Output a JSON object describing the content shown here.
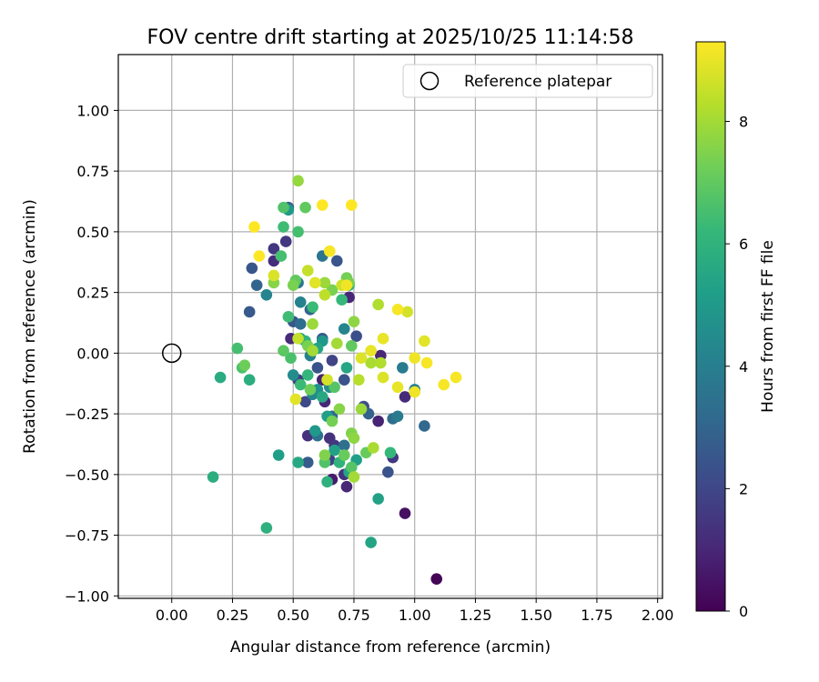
{
  "chart_data": {
    "type": "scatter",
    "title": "FOV centre drift starting at 2025/10/25 11:14:58",
    "xlabel": "Angular distance from reference (arcmin)",
    "ylabel": "Rotation from reference (arcmin)",
    "xlim": [
      -0.22,
      2.02
    ],
    "ylim": [
      -1.01,
      1.23
    ],
    "xticks": [
      0.0,
      0.25,
      0.5,
      0.75,
      1.0,
      1.25,
      1.5,
      1.75,
      2.0
    ],
    "xtick_labels": [
      "0.00",
      "0.25",
      "0.50",
      "0.75",
      "1.00",
      "1.25",
      "1.50",
      "1.75",
      "2.00"
    ],
    "yticks": [
      -1.0,
      -0.75,
      -0.5,
      -0.25,
      0.0,
      0.25,
      0.5,
      0.75,
      1.0
    ],
    "ytick_labels": [
      "−1.00",
      "−0.75",
      "−0.50",
      "−0.25",
      "0.00",
      "0.25",
      "0.50",
      "0.75",
      "1.00"
    ],
    "grid": true,
    "legend": {
      "placement": "upper-right",
      "entries": [
        {
          "label": "Reference platepar",
          "marker": "open-circle"
        }
      ]
    },
    "reference_point": {
      "x": 0.0,
      "y": 0.0
    },
    "colorbar": {
      "label": "Hours from first FF file",
      "colormap": "viridis",
      "range": [
        0,
        9.3
      ],
      "ticks": [
        0,
        2,
        4,
        6,
        8
      ],
      "tick_labels": [
        "0",
        "2",
        "4",
        "6",
        "8"
      ]
    },
    "colormap_stops": [
      "#440154",
      "#482878",
      "#3e4989",
      "#31688e",
      "#26828e",
      "#1f9e89",
      "#35b779",
      "#6ece58",
      "#b5de2b",
      "#fde725"
    ],
    "points": [
      {
        "x": 1.09,
        "y": -0.93,
        "h": 0.1
      },
      {
        "x": 0.96,
        "y": -0.66,
        "h": 0.4
      },
      {
        "x": 0.72,
        "y": -0.55,
        "h": 1.0
      },
      {
        "x": 0.66,
        "y": -0.52,
        "h": 0.7
      },
      {
        "x": 0.63,
        "y": -0.2,
        "h": 1.0
      },
      {
        "x": 0.62,
        "y": -0.11,
        "h": 0.9
      },
      {
        "x": 0.85,
        "y": -0.28,
        "h": 0.9
      },
      {
        "x": 0.96,
        "y": -0.18,
        "h": 1.1
      },
      {
        "x": 0.49,
        "y": 0.06,
        "h": 1.1
      },
      {
        "x": 0.73,
        "y": 0.23,
        "h": 1.0
      },
      {
        "x": 0.86,
        "y": -0.01,
        "h": 1.0
      },
      {
        "x": 0.42,
        "y": 0.43,
        "h": 1.5
      },
      {
        "x": 0.47,
        "y": 0.46,
        "h": 1.5
      },
      {
        "x": 0.42,
        "y": 0.38,
        "h": 1.2
      },
      {
        "x": 0.71,
        "y": -0.5,
        "h": 1.4
      },
      {
        "x": 0.91,
        "y": -0.43,
        "h": 1.5
      },
      {
        "x": 0.65,
        "y": -0.35,
        "h": 1.3
      },
      {
        "x": 0.56,
        "y": -0.34,
        "h": 1.3
      },
      {
        "x": 0.52,
        "y": -0.11,
        "h": 1.6
      },
      {
        "x": 0.67,
        "y": -0.38,
        "h": 1.5
      },
      {
        "x": 0.65,
        "y": -0.44,
        "h": 1.8
      },
      {
        "x": 0.66,
        "y": -0.03,
        "h": 1.9
      },
      {
        "x": 0.55,
        "y": -0.2,
        "h": 2.1
      },
      {
        "x": 0.79,
        "y": -0.22,
        "h": 2.2
      },
      {
        "x": 0.76,
        "y": 0.07,
        "h": 2.3
      },
      {
        "x": 0.71,
        "y": -0.11,
        "h": 2.4
      },
      {
        "x": 0.5,
        "y": 0.13,
        "h": 2.5
      },
      {
        "x": 0.6,
        "y": -0.06,
        "h": 2.4
      },
      {
        "x": 0.33,
        "y": 0.35,
        "h": 2.5
      },
      {
        "x": 0.32,
        "y": 0.17,
        "h": 2.6
      },
      {
        "x": 0.48,
        "y": 0.6,
        "h": 2.8
      },
      {
        "x": 0.68,
        "y": 0.38,
        "h": 2.5
      },
      {
        "x": 0.89,
        "y": -0.49,
        "h": 2.4
      },
      {
        "x": 0.56,
        "y": -0.45,
        "h": 2.7
      },
      {
        "x": 0.81,
        "y": -0.25,
        "h": 2.9
      },
      {
        "x": 0.62,
        "y": 0.06,
        "h": 2.6
      },
      {
        "x": 0.35,
        "y": 0.28,
        "h": 3.0
      },
      {
        "x": 1.04,
        "y": -0.3,
        "h": 3.1
      },
      {
        "x": 0.57,
        "y": 0.18,
        "h": 3.0
      },
      {
        "x": 0.53,
        "y": 0.12,
        "h": 3.3
      },
      {
        "x": 0.91,
        "y": -0.27,
        "h": 3.3
      },
      {
        "x": 0.66,
        "y": -0.26,
        "h": 3.1
      },
      {
        "x": 0.71,
        "y": -0.38,
        "h": 3.4
      },
      {
        "x": 0.6,
        "y": -0.34,
        "h": 3.5
      },
      {
        "x": 0.52,
        "y": 0.29,
        "h": 3.7
      },
      {
        "x": 0.62,
        "y": 0.4,
        "h": 3.6
      },
      {
        "x": 0.93,
        "y": -0.26,
        "h": 3.8
      },
      {
        "x": 0.95,
        "y": -0.06,
        "h": 3.9
      },
      {
        "x": 1.0,
        "y": -0.15,
        "h": 4.0
      },
      {
        "x": 0.57,
        "y": -0.01,
        "h": 4.1
      },
      {
        "x": 0.39,
        "y": 0.24,
        "h": 4.2
      },
      {
        "x": 0.53,
        "y": 0.21,
        "h": 4.1
      },
      {
        "x": 0.58,
        "y": -0.17,
        "h": 4.3
      },
      {
        "x": 0.71,
        "y": 0.1,
        "h": 4.2
      },
      {
        "x": 0.5,
        "y": -0.09,
        "h": 4.5
      },
      {
        "x": 0.65,
        "y": -0.14,
        "h": 4.6
      },
      {
        "x": 0.6,
        "y": -0.15,
        "h": 4.7
      },
      {
        "x": 0.48,
        "y": 0.59,
        "h": 5.0
      },
      {
        "x": 0.59,
        "y": -0.32,
        "h": 5.0
      },
      {
        "x": 0.62,
        "y": 0.05,
        "h": 5.0
      },
      {
        "x": 0.44,
        "y": -0.42,
        "h": 5.2
      },
      {
        "x": 0.64,
        "y": -0.26,
        "h": 5.2
      },
      {
        "x": 0.67,
        "y": -0.4,
        "h": 5.3
      },
      {
        "x": 0.85,
        "y": -0.6,
        "h": 5.3
      },
      {
        "x": 0.82,
        "y": -0.78,
        "h": 5.4
      },
      {
        "x": 0.76,
        "y": -0.44,
        "h": 5.2
      },
      {
        "x": 0.53,
        "y": 0.06,
        "h": 5.5
      },
      {
        "x": 0.6,
        "y": 0.02,
        "h": 5.4
      },
      {
        "x": 0.72,
        "y": -0.06,
        "h": 5.5
      },
      {
        "x": 0.62,
        "y": -0.18,
        "h": 5.6
      },
      {
        "x": 0.73,
        "y": -0.49,
        "h": 5.5
      },
      {
        "x": 0.52,
        "y": -0.45,
        "h": 5.6
      },
      {
        "x": 0.2,
        "y": -0.1,
        "h": 5.7
      },
      {
        "x": 0.32,
        "y": -0.11,
        "h": 5.8
      },
      {
        "x": 0.17,
        "y": -0.51,
        "h": 5.8
      },
      {
        "x": 0.39,
        "y": -0.72,
        "h": 5.9
      },
      {
        "x": 0.64,
        "y": -0.53,
        "h": 5.9
      },
      {
        "x": 0.69,
        "y": -0.45,
        "h": 6.0
      },
      {
        "x": 0.73,
        "y": 0.28,
        "h": 6.0
      },
      {
        "x": 0.55,
        "y": 0.05,
        "h": 6.0
      },
      {
        "x": 0.56,
        "y": -0.09,
        "h": 6.1
      },
      {
        "x": 0.7,
        "y": 0.22,
        "h": 6.2
      },
      {
        "x": 0.9,
        "y": -0.41,
        "h": 6.2
      },
      {
        "x": 0.53,
        "y": -0.13,
        "h": 6.3
      },
      {
        "x": 0.58,
        "y": 0.19,
        "h": 6.3
      },
      {
        "x": 0.46,
        "y": 0.52,
        "h": 6.4
      },
      {
        "x": 0.48,
        "y": 0.15,
        "h": 6.4
      },
      {
        "x": 0.52,
        "y": 0.5,
        "h": 6.5
      },
      {
        "x": 0.45,
        "y": 0.4,
        "h": 6.5
      },
      {
        "x": 0.27,
        "y": 0.02,
        "h": 6.5
      },
      {
        "x": 0.29,
        "y": -0.06,
        "h": 6.6
      },
      {
        "x": 0.46,
        "y": 0.6,
        "h": 6.7
      },
      {
        "x": 0.49,
        "y": -0.02,
        "h": 6.6
      },
      {
        "x": 0.63,
        "y": -0.45,
        "h": 6.7
      },
      {
        "x": 0.74,
        "y": -0.47,
        "h": 6.8
      },
      {
        "x": 0.67,
        "y": -0.14,
        "h": 6.8
      },
      {
        "x": 0.46,
        "y": 0.01,
        "h": 6.9
      },
      {
        "x": 0.51,
        "y": 0.3,
        "h": 7.0
      },
      {
        "x": 0.55,
        "y": 0.6,
        "h": 7.0
      },
      {
        "x": 0.74,
        "y": 0.03,
        "h": 7.0
      },
      {
        "x": 0.8,
        "y": -0.41,
        "h": 7.1
      },
      {
        "x": 0.71,
        "y": -0.42,
        "h": 7.1
      },
      {
        "x": 0.3,
        "y": -0.05,
        "h": 7.2
      },
      {
        "x": 0.57,
        "y": -0.15,
        "h": 7.2
      },
      {
        "x": 0.66,
        "y": -0.28,
        "h": 7.3
      },
      {
        "x": 0.72,
        "y": 0.31,
        "h": 7.3
      },
      {
        "x": 0.73,
        "y": 0.29,
        "h": 7.4
      },
      {
        "x": 0.56,
        "y": 0.03,
        "h": 7.4
      },
      {
        "x": 0.5,
        "y": 0.28,
        "h": 7.4
      },
      {
        "x": 0.66,
        "y": 0.26,
        "h": 7.4
      },
      {
        "x": 0.63,
        "y": -0.42,
        "h": 7.5
      },
      {
        "x": 0.74,
        "y": -0.33,
        "h": 7.5
      },
      {
        "x": 0.42,
        "y": 0.29,
        "h": 7.6
      },
      {
        "x": 0.69,
        "y": -0.23,
        "h": 7.6
      },
      {
        "x": 0.75,
        "y": -0.35,
        "h": 7.7
      },
      {
        "x": 0.75,
        "y": 0.13,
        "h": 7.7
      },
      {
        "x": 0.52,
        "y": 0.71,
        "h": 7.8
      },
      {
        "x": 0.63,
        "y": 0.29,
        "h": 7.9
      },
      {
        "x": 0.78,
        "y": -0.23,
        "h": 7.9
      },
      {
        "x": 0.58,
        "y": 0.12,
        "h": 7.9
      },
      {
        "x": 0.68,
        "y": 0.04,
        "h": 8.0
      },
      {
        "x": 0.58,
        "y": 0.01,
        "h": 8.0
      },
      {
        "x": 0.75,
        "y": -0.51,
        "h": 8.0
      },
      {
        "x": 0.83,
        "y": -0.39,
        "h": 8.1
      },
      {
        "x": 0.82,
        "y": -0.04,
        "h": 8.1
      },
      {
        "x": 0.85,
        "y": 0.2,
        "h": 8.2
      },
      {
        "x": 0.86,
        "y": -0.04,
        "h": 8.2
      },
      {
        "x": 0.77,
        "y": -0.11,
        "h": 8.3
      },
      {
        "x": 0.65,
        "y": 0.42,
        "h": 8.3
      },
      {
        "x": 0.63,
        "y": 0.24,
        "h": 8.4
      },
      {
        "x": 0.56,
        "y": 0.34,
        "h": 8.5
      },
      {
        "x": 0.52,
        "y": 0.06,
        "h": 8.5
      },
      {
        "x": 0.7,
        "y": 0.28,
        "h": 8.6
      },
      {
        "x": 0.64,
        "y": -0.11,
        "h": 8.7
      },
      {
        "x": 0.97,
        "y": 0.17,
        "h": 8.7
      },
      {
        "x": 0.87,
        "y": -0.1,
        "h": 8.8
      },
      {
        "x": 0.42,
        "y": 0.32,
        "h": 8.8
      },
      {
        "x": 0.78,
        "y": -0.02,
        "h": 8.8
      },
      {
        "x": 0.59,
        "y": 0.29,
        "h": 8.9
      },
      {
        "x": 0.51,
        "y": -0.19,
        "h": 8.9
      },
      {
        "x": 1.04,
        "y": 0.05,
        "h": 8.9
      },
      {
        "x": 0.82,
        "y": 0.01,
        "h": 9.0
      },
      {
        "x": 0.87,
        "y": 0.06,
        "h": 9.0
      },
      {
        "x": 0.93,
        "y": -0.14,
        "h": 9.0
      },
      {
        "x": 1.0,
        "y": -0.16,
        "h": 9.1
      },
      {
        "x": 1.0,
        "y": -0.02,
        "h": 9.1
      },
      {
        "x": 1.05,
        "y": -0.04,
        "h": 9.2
      },
      {
        "x": 1.12,
        "y": -0.13,
        "h": 9.2
      },
      {
        "x": 1.17,
        "y": -0.1,
        "h": 9.2
      },
      {
        "x": 0.93,
        "y": 0.18,
        "h": 9.2
      },
      {
        "x": 0.74,
        "y": 0.61,
        "h": 9.3
      },
      {
        "x": 0.62,
        "y": 0.61,
        "h": 9.3
      },
      {
        "x": 0.34,
        "y": 0.52,
        "h": 9.3
      },
      {
        "x": 0.36,
        "y": 0.4,
        "h": 9.3
      },
      {
        "x": 0.65,
        "y": 0.42,
        "h": 9.2
      },
      {
        "x": 0.72,
        "y": 0.28,
        "h": 9.1
      }
    ]
  }
}
